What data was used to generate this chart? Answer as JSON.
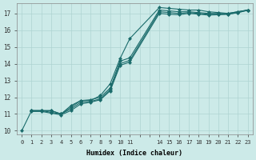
{
  "xlabel": "Humidex (Indice chaleur)",
  "background_color": "#cceae8",
  "grid_color": "#aed4d2",
  "line_color": "#1a6b6b",
  "xlim": [
    -0.5,
    23.5
  ],
  "ylim": [
    9.8,
    17.6
  ],
  "xticks": [
    0,
    1,
    2,
    3,
    4,
    5,
    6,
    7,
    8,
    9,
    10,
    11,
    12,
    13,
    14,
    15,
    16,
    17,
    18,
    19,
    20,
    21,
    22,
    23
  ],
  "xtick_labels": [
    "0",
    "1",
    "2",
    "3",
    "4",
    "5",
    "6",
    "7",
    "8",
    "9",
    "10",
    "11",
    "",
    "",
    "14",
    "15",
    "16",
    "17",
    "18",
    "19",
    "20",
    "21",
    "22",
    "23"
  ],
  "yticks": [
    10,
    11,
    12,
    13,
    14,
    15,
    16,
    17
  ],
  "line1_x": [
    0,
    1,
    2,
    3,
    4,
    5,
    6,
    7,
    8,
    9,
    10,
    11,
    14,
    15,
    16,
    17,
    18,
    19,
    20,
    21,
    22,
    23
  ],
  "line1_y": [
    10.0,
    11.2,
    11.2,
    11.2,
    11.0,
    11.5,
    11.8,
    11.8,
    12.1,
    12.8,
    14.3,
    15.5,
    17.35,
    17.3,
    17.25,
    17.2,
    17.2,
    17.1,
    17.05,
    17.0,
    17.1,
    17.2
  ],
  "line2_x": [
    1,
    2,
    3,
    4,
    5,
    6,
    7,
    8,
    9,
    10,
    11,
    14,
    15,
    16,
    17,
    18,
    19,
    20,
    21,
    22,
    23
  ],
  "line2_y": [
    11.2,
    11.2,
    11.2,
    11.0,
    11.4,
    11.8,
    11.85,
    12.0,
    12.55,
    14.15,
    14.35,
    17.2,
    17.15,
    17.1,
    17.1,
    17.05,
    17.0,
    17.0,
    17.0,
    17.1,
    17.2
  ],
  "line3_x": [
    1,
    2,
    3,
    4,
    5,
    6,
    7,
    8,
    9,
    10,
    11,
    14,
    15,
    16,
    17,
    18,
    19,
    20,
    21,
    22,
    23
  ],
  "line3_y": [
    11.2,
    11.2,
    11.1,
    11.0,
    11.3,
    11.7,
    11.75,
    11.9,
    12.45,
    14.0,
    14.2,
    17.1,
    17.05,
    17.0,
    17.05,
    17.0,
    16.95,
    16.95,
    16.95,
    17.05,
    17.2
  ],
  "line4_x": [
    1,
    2,
    3,
    4,
    5,
    6,
    7,
    8,
    9,
    10,
    11,
    14,
    15,
    16,
    17,
    18,
    19,
    20,
    21,
    22,
    23
  ],
  "line4_y": [
    11.15,
    11.15,
    11.05,
    10.95,
    11.2,
    11.6,
    11.7,
    11.85,
    12.38,
    13.9,
    14.1,
    17.0,
    16.95,
    16.92,
    17.0,
    16.95,
    16.9,
    16.92,
    16.95,
    17.05,
    17.18
  ],
  "marker_size": 2.5,
  "line_width": 0.8
}
